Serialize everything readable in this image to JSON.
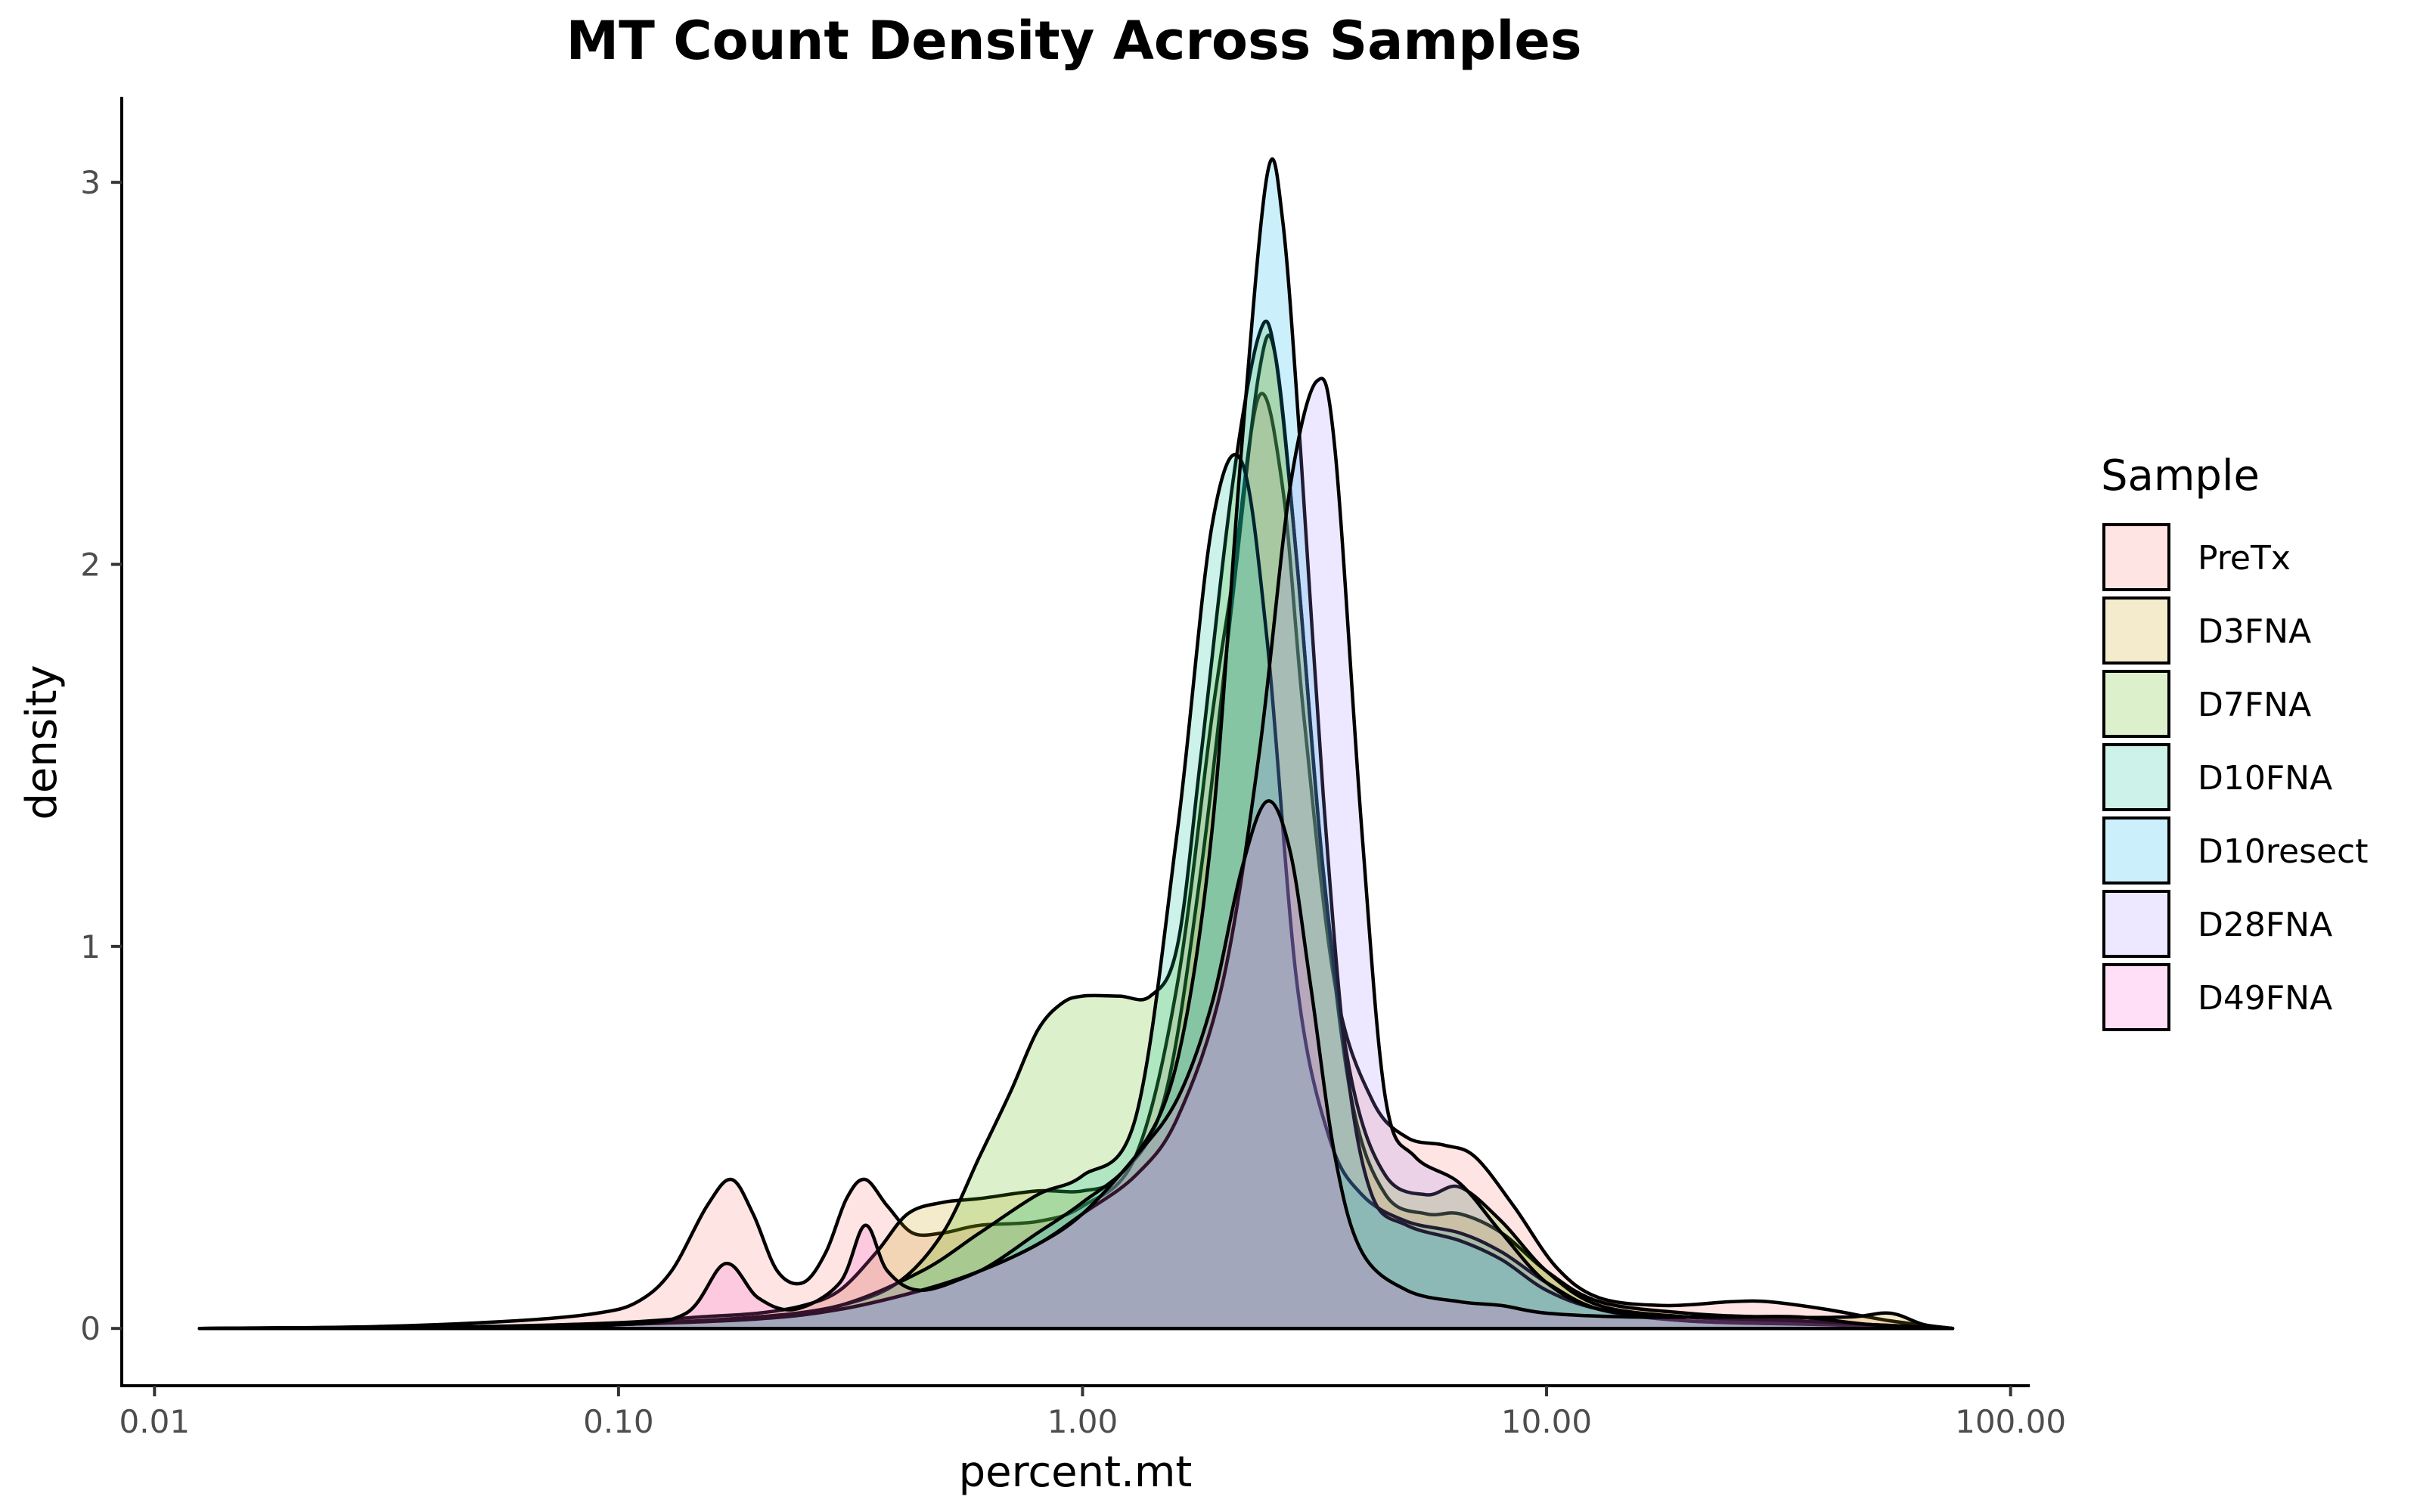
{
  "chart_data": {
    "type": "area",
    "title": "MT Count Density Across Samples",
    "xlabel": "percent.mt",
    "ylabel": "density",
    "x_scale": "log10",
    "xlim": [
      0.0085,
      110
    ],
    "ylim": [
      -0.15,
      3.22
    ],
    "x_ticks": [
      0.01,
      0.1,
      1,
      10,
      100
    ],
    "x_tick_labels": [
      "0.01",
      "0.10",
      "1.00",
      "10.00",
      "100.00"
    ],
    "y_ticks": [
      0,
      1,
      2,
      3
    ],
    "y_tick_labels": [
      "0",
      "1",
      "2",
      "3"
    ],
    "legend_title": "Sample",
    "legend_position": "right",
    "grid": false,
    "fill_opacity": 0.2,
    "series": [
      {
        "name": "PreTx",
        "color": "#F8766D",
        "points": [
          [
            0.0125,
            0
          ],
          [
            0.03,
            0.005
          ],
          [
            0.06,
            0.02
          ],
          [
            0.09,
            0.04
          ],
          [
            0.11,
            0.07
          ],
          [
            0.13,
            0.15
          ],
          [
            0.155,
            0.32
          ],
          [
            0.175,
            0.39
          ],
          [
            0.195,
            0.3
          ],
          [
            0.22,
            0.15
          ],
          [
            0.25,
            0.12
          ],
          [
            0.28,
            0.2
          ],
          [
            0.31,
            0.34
          ],
          [
            0.34,
            0.39
          ],
          [
            0.38,
            0.32
          ],
          [
            0.43,
            0.25
          ],
          [
            0.5,
            0.25
          ],
          [
            0.6,
            0.27
          ],
          [
            0.8,
            0.28
          ],
          [
            1.0,
            0.32
          ],
          [
            1.3,
            0.45
          ],
          [
            1.6,
            0.9
          ],
          [
            1.9,
            1.6
          ],
          [
            2.1,
            1.95
          ],
          [
            2.4,
            2.44
          ],
          [
            2.7,
            2.2
          ],
          [
            3.0,
            1.6
          ],
          [
            3.5,
            0.9
          ],
          [
            4.2,
            0.6
          ],
          [
            5.0,
            0.5
          ],
          [
            6.0,
            0.48
          ],
          [
            7.0,
            0.45
          ],
          [
            8.5,
            0.32
          ],
          [
            10.5,
            0.16
          ],
          [
            13,
            0.08
          ],
          [
            18,
            0.06
          ],
          [
            25,
            0.07
          ],
          [
            30,
            0.07
          ],
          [
            40,
            0.05
          ],
          [
            55,
            0.02
          ],
          [
            75,
            0
          ]
        ]
      },
      {
        "name": "D3FNA",
        "color": "#C49A00",
        "points": [
          [
            0.0125,
            0
          ],
          [
            0.05,
            0.005
          ],
          [
            0.1,
            0.015
          ],
          [
            0.15,
            0.03
          ],
          [
            0.2,
            0.04
          ],
          [
            0.25,
            0.06
          ],
          [
            0.3,
            0.1
          ],
          [
            0.36,
            0.2
          ],
          [
            0.42,
            0.3
          ],
          [
            0.5,
            0.33
          ],
          [
            0.6,
            0.34
          ],
          [
            0.8,
            0.36
          ],
          [
            1.0,
            0.36
          ],
          [
            1.2,
            0.4
          ],
          [
            1.5,
            0.6
          ],
          [
            1.8,
            1.2
          ],
          [
            2.1,
            1.9
          ],
          [
            2.4,
            2.5
          ],
          [
            2.6,
            2.55
          ],
          [
            2.9,
            2.0
          ],
          [
            3.3,
            1.2
          ],
          [
            3.8,
            0.6
          ],
          [
            4.5,
            0.35
          ],
          [
            5.5,
            0.3
          ],
          [
            6.5,
            0.3
          ],
          [
            8,
            0.25
          ],
          [
            10,
            0.15
          ],
          [
            13,
            0.07
          ],
          [
            20,
            0.04
          ],
          [
            30,
            0.03
          ],
          [
            45,
            0.03
          ],
          [
            55,
            0.04
          ],
          [
            65,
            0.01
          ],
          [
            75,
            0
          ]
        ]
      },
      {
        "name": "D7FNA",
        "color": "#53B400",
        "points": [
          [
            0.0125,
            0
          ],
          [
            0.05,
            0.005
          ],
          [
            0.1,
            0.01
          ],
          [
            0.2,
            0.03
          ],
          [
            0.3,
            0.06
          ],
          [
            0.4,
            0.12
          ],
          [
            0.5,
            0.25
          ],
          [
            0.6,
            0.45
          ],
          [
            0.7,
            0.62
          ],
          [
            0.8,
            0.78
          ],
          [
            0.9,
            0.85
          ],
          [
            1.0,
            0.87
          ],
          [
            1.2,
            0.87
          ],
          [
            1.4,
            0.87
          ],
          [
            1.6,
            1.0
          ],
          [
            1.8,
            1.5
          ],
          [
            2.1,
            2.2
          ],
          [
            2.4,
            2.6
          ],
          [
            2.6,
            2.55
          ],
          [
            2.9,
            2.0
          ],
          [
            3.3,
            1.2
          ],
          [
            3.8,
            0.65
          ],
          [
            4.5,
            0.4
          ],
          [
            5.5,
            0.35
          ],
          [
            6.5,
            0.37
          ],
          [
            8,
            0.28
          ],
          [
            10,
            0.15
          ],
          [
            13,
            0.06
          ],
          [
            20,
            0.03
          ],
          [
            30,
            0.02
          ],
          [
            50,
            0.01
          ],
          [
            75,
            0
          ]
        ]
      },
      {
        "name": "D10FNA",
        "color": "#00C094",
        "points": [
          [
            0.0125,
            0
          ],
          [
            0.05,
            0.003
          ],
          [
            0.1,
            0.01
          ],
          [
            0.2,
            0.03
          ],
          [
            0.3,
            0.06
          ],
          [
            0.45,
            0.15
          ],
          [
            0.6,
            0.25
          ],
          [
            0.8,
            0.35
          ],
          [
            1.0,
            0.4
          ],
          [
            1.3,
            0.55
          ],
          [
            1.6,
            1.3
          ],
          [
            1.9,
            2.1
          ],
          [
            2.2,
            2.27
          ],
          [
            2.5,
            1.8
          ],
          [
            2.9,
            0.9
          ],
          [
            3.4,
            0.5
          ],
          [
            4.0,
            0.35
          ],
          [
            5.0,
            0.28
          ],
          [
            6.5,
            0.25
          ],
          [
            8,
            0.2
          ],
          [
            10,
            0.12
          ],
          [
            13,
            0.05
          ],
          [
            20,
            0.02
          ],
          [
            40,
            0.01
          ],
          [
            75,
            0
          ]
        ]
      },
      {
        "name": "D10resect",
        "color": "#00B6EB",
        "points": [
          [
            0.0125,
            0
          ],
          [
            0.05,
            0.003
          ],
          [
            0.1,
            0.01
          ],
          [
            0.2,
            0.03
          ],
          [
            0.3,
            0.05
          ],
          [
            0.45,
            0.1
          ],
          [
            0.6,
            0.15
          ],
          [
            0.8,
            0.25
          ],
          [
            1.0,
            0.33
          ],
          [
            1.3,
            0.45
          ],
          [
            1.6,
            0.7
          ],
          [
            1.9,
            1.3
          ],
          [
            2.2,
            2.3
          ],
          [
            2.5,
            3.02
          ],
          [
            2.7,
            2.9
          ],
          [
            2.95,
            2.3
          ],
          [
            3.3,
            1.4
          ],
          [
            3.7,
            0.7
          ],
          [
            4.2,
            0.35
          ],
          [
            5.0,
            0.27
          ],
          [
            6.5,
            0.23
          ],
          [
            8,
            0.18
          ],
          [
            10,
            0.1
          ],
          [
            13,
            0.05
          ],
          [
            20,
            0.02
          ],
          [
            40,
            0.01
          ],
          [
            75,
            0
          ]
        ]
      },
      {
        "name": "D28FNA",
        "color": "#A58AFF",
        "points": [
          [
            0.0125,
            0
          ],
          [
            0.05,
            0.003
          ],
          [
            0.1,
            0.01
          ],
          [
            0.2,
            0.025
          ],
          [
            0.3,
            0.05
          ],
          [
            0.45,
            0.1
          ],
          [
            0.6,
            0.15
          ],
          [
            0.8,
            0.22
          ],
          [
            1.0,
            0.3
          ],
          [
            1.3,
            0.4
          ],
          [
            1.6,
            0.55
          ],
          [
            2.0,
            0.9
          ],
          [
            2.4,
            1.5
          ],
          [
            2.8,
            2.2
          ],
          [
            3.2,
            2.48
          ],
          [
            3.5,
            2.3
          ],
          [
            4.0,
            1.3
          ],
          [
            4.5,
            0.6
          ],
          [
            5.2,
            0.45
          ],
          [
            6.5,
            0.38
          ],
          [
            8,
            0.25
          ],
          [
            10,
            0.12
          ],
          [
            13,
            0.05
          ],
          [
            20,
            0.03
          ],
          [
            35,
            0.02
          ],
          [
            50,
            0.01
          ],
          [
            75,
            0
          ]
        ]
      },
      {
        "name": "D49FNA",
        "color": "#FB61D7",
        "points": [
          [
            0.0125,
            0
          ],
          [
            0.05,
            0.003
          ],
          [
            0.1,
            0.01
          ],
          [
            0.14,
            0.04
          ],
          [
            0.17,
            0.17
          ],
          [
            0.2,
            0.08
          ],
          [
            0.24,
            0.05
          ],
          [
            0.3,
            0.12
          ],
          [
            0.34,
            0.27
          ],
          [
            0.38,
            0.15
          ],
          [
            0.45,
            0.1
          ],
          [
            0.6,
            0.15
          ],
          [
            0.8,
            0.22
          ],
          [
            1.0,
            0.3
          ],
          [
            1.3,
            0.45
          ],
          [
            1.6,
            0.6
          ],
          [
            1.9,
            0.85
          ],
          [
            2.2,
            1.2
          ],
          [
            2.5,
            1.38
          ],
          [
            2.8,
            1.25
          ],
          [
            3.1,
            0.9
          ],
          [
            3.5,
            0.45
          ],
          [
            4.0,
            0.2
          ],
          [
            5.0,
            0.1
          ],
          [
            6.5,
            0.07
          ],
          [
            8,
            0.06
          ],
          [
            10,
            0.04
          ],
          [
            15,
            0.03
          ],
          [
            25,
            0.03
          ],
          [
            35,
            0.03
          ],
          [
            50,
            0.01
          ],
          [
            75,
            0
          ]
        ]
      }
    ]
  }
}
